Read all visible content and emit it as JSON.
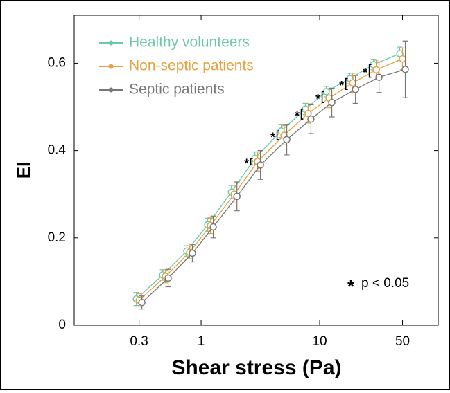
{
  "chart_data": {
    "type": "line",
    "x_label": "Shear stress (Pa)",
    "y_label": "EI",
    "x": [
      0.3,
      0.5,
      0.8,
      1.2,
      1.9,
      3,
      5,
      8,
      12,
      19,
      30,
      50
    ],
    "xlim": [
      0.085,
      100
    ],
    "xticks": [
      0.3,
      1,
      10,
      50
    ],
    "xscale": "log",
    "ylim": [
      0,
      0.71
    ],
    "yticks": [
      0,
      0.2,
      0.4,
      0.6
    ],
    "series": [
      {
        "name": "Healthy volunteers",
        "color": "#6cc9a8",
        "values": [
          0.06,
          0.115,
          0.17,
          0.23,
          0.305,
          0.382,
          0.445,
          0.495,
          0.535,
          0.565,
          0.597,
          0.622
        ],
        "errors": [
          0.015,
          0.012,
          0.012,
          0.015,
          0.015,
          0.015,
          0.015,
          0.013,
          0.012,
          0.012,
          0.012,
          0.015
        ]
      },
      {
        "name": "Non-septic patients",
        "color": "#e8a040",
        "values": [
          0.057,
          0.112,
          0.167,
          0.228,
          0.3,
          0.375,
          0.435,
          0.485,
          0.52,
          0.555,
          0.585,
          0.61
        ],
        "errors": [
          0.015,
          0.015,
          0.015,
          0.018,
          0.02,
          0.022,
          0.022,
          0.022,
          0.022,
          0.022,
          0.022,
          0.025
        ]
      },
      {
        "name": "Septic patients",
        "color": "#777777",
        "values": [
          0.052,
          0.108,
          0.165,
          0.225,
          0.295,
          0.367,
          0.425,
          0.472,
          0.51,
          0.54,
          0.568,
          0.586
        ],
        "errors": [
          0.015,
          0.02,
          0.02,
          0.025,
          0.033,
          0.033,
          0.035,
          0.033,
          0.033,
          0.032,
          0.035,
          0.065
        ]
      }
    ],
    "significance_marker": "*",
    "significance_note": "p < 0.05",
    "significant_x": [
      3,
      5,
      8,
      12,
      19,
      30
    ],
    "legend": "upper left"
  }
}
